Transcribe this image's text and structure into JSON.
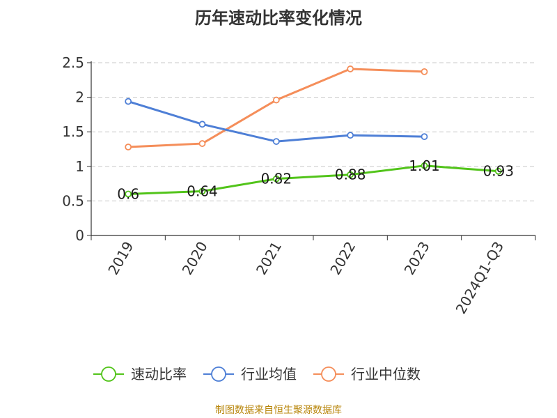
{
  "chart_data": {
    "type": "line",
    "title": "历年速动比率变化情况",
    "categories": [
      "2019",
      "2020",
      "2021",
      "2022",
      "2023",
      "2024Q1-Q3"
    ],
    "ylim": [
      0,
      2.5
    ],
    "yticks": [
      "0",
      "0.5",
      "1",
      "1.5",
      "2",
      "2.5"
    ],
    "grid": true,
    "legend_position": "bottom",
    "series": [
      {
        "name": "速动比率",
        "color": "#52c41a",
        "values": [
          0.6,
          0.64,
          0.82,
          0.88,
          1.01,
          0.93
        ],
        "labels": [
          "0.6",
          "0.64",
          "0.82",
          "0.88",
          "1.01",
          "0.93"
        ]
      },
      {
        "name": "行业均值",
        "color": "#4e7fd6",
        "values": [
          1.94,
          1.61,
          1.36,
          1.45,
          1.43,
          null
        ]
      },
      {
        "name": "行业中位数",
        "color": "#f58e5a",
        "values": [
          1.28,
          1.33,
          1.96,
          2.41,
          2.37,
          null
        ]
      }
    ]
  },
  "source": "制图数据来自恒生聚源数据库"
}
